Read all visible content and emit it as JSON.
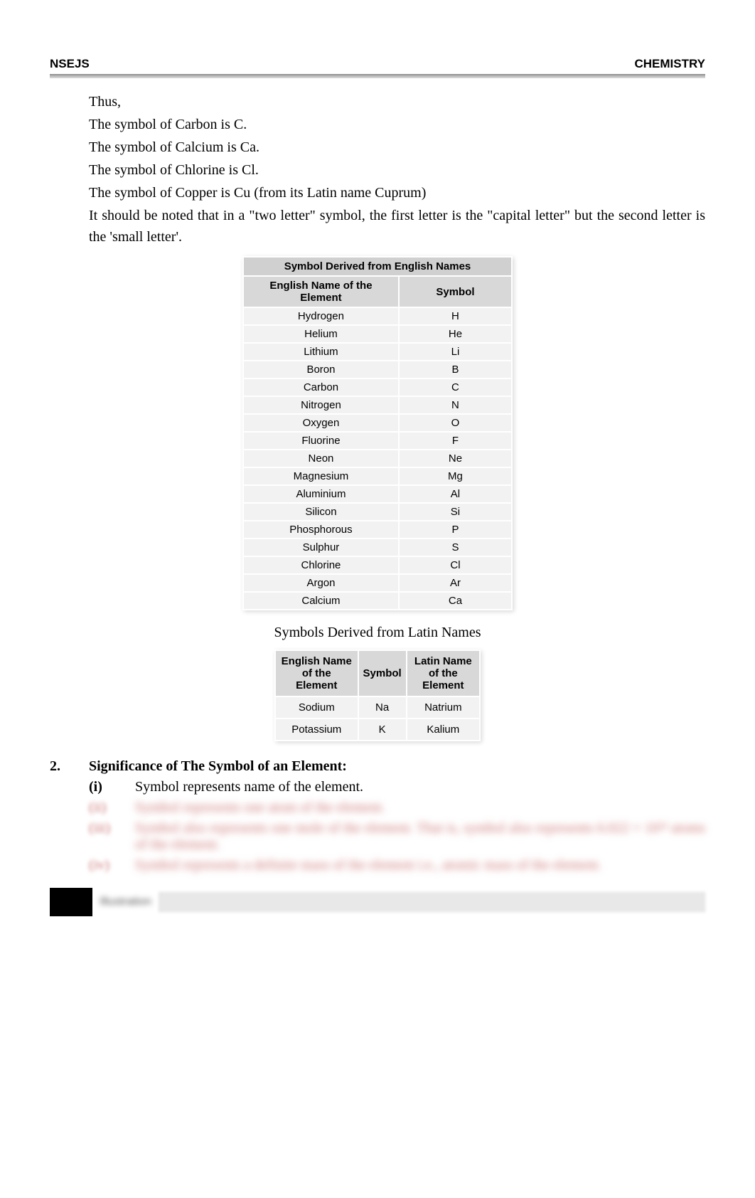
{
  "header": {
    "left": "NSEJS",
    "right": "CHEMISTRY"
  },
  "intro": {
    "p1": "Thus,",
    "p2": "The symbol of Carbon is C.",
    "p3": "The symbol of Calcium is Ca.",
    "p4": "The symbol of Chlorine is Cl.",
    "p5": "The symbol of Copper is Cu (from its Latin name Cuprum)",
    "p6": "It should be noted that in a \"two letter\" symbol, the first letter is the \"capital letter\" but the second letter is the 'small letter'."
  },
  "table1": {
    "title": "Symbol Derived from English Names",
    "col1": "English Name of the Element",
    "col2": "Symbol",
    "rows": [
      {
        "name": "Hydrogen",
        "sym": "H"
      },
      {
        "name": "Helium",
        "sym": "He"
      },
      {
        "name": "Lithium",
        "sym": "Li"
      },
      {
        "name": "Boron",
        "sym": "B"
      },
      {
        "name": "Carbon",
        "sym": "C"
      },
      {
        "name": "Nitrogen",
        "sym": "N"
      },
      {
        "name": "Oxygen",
        "sym": "O"
      },
      {
        "name": "Fluorine",
        "sym": "F"
      },
      {
        "name": "Neon",
        "sym": "Ne"
      },
      {
        "name": "Magnesium",
        "sym": "Mg"
      },
      {
        "name": "Aluminium",
        "sym": "Al"
      },
      {
        "name": "Silicon",
        "sym": "Si"
      },
      {
        "name": "Phosphorous",
        "sym": "P"
      },
      {
        "name": "Sulphur",
        "sym": "S"
      },
      {
        "name": "Chlorine",
        "sym": "Cl"
      },
      {
        "name": "Argon",
        "sym": "Ar"
      },
      {
        "name": "Calcium",
        "sym": "Ca"
      }
    ]
  },
  "table2": {
    "title": "Symbols Derived from Latin Names",
    "col1": "English Name of the Element",
    "col2": "Symbol",
    "col3": "Latin Name of the Element",
    "rows": [
      {
        "eng": "Sodium",
        "sym": "Na",
        "lat": "Natrium"
      },
      {
        "eng": "Potassium",
        "sym": "K",
        "lat": "Kalium"
      }
    ]
  },
  "section2": {
    "num": "2.",
    "title": "Significance of The Symbol of an Element:",
    "items": {
      "i_marker": "(i)",
      "i_text": "Symbol represents name of the element.",
      "ii_marker": "(ii)",
      "ii_text": "Symbol represents one atom of the element.",
      "iii_marker": "(iii)",
      "iii_text": "Symbol also represents one mole of the element. That is, symbol also represents 6.022 × 10²³ atoms of the element.",
      "iv_marker": "(iv)",
      "iv_text": "Symbol represents a definite mass of the element i.e., atomic mass of the element."
    }
  },
  "bottom_label": "Illustration"
}
